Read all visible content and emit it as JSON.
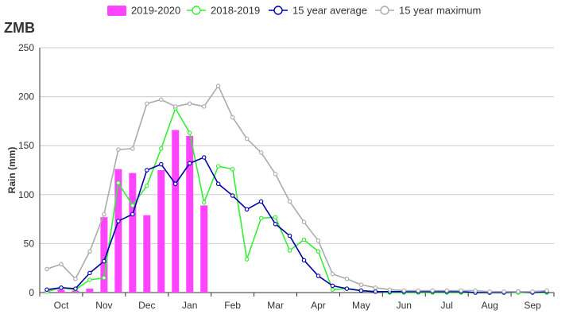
{
  "chart_data": {
    "type": "bar",
    "title": "ZMB",
    "ylabel": "Rain (mm)",
    "xlabel": "",
    "ylim": [
      0,
      250
    ],
    "yticks": [
      0,
      50,
      100,
      150,
      200,
      250
    ],
    "grid": true,
    "legend_position": "top",
    "months": [
      "Oct",
      "Nov",
      "Dec",
      "Jan",
      "Feb",
      "Mar",
      "Apr",
      "May",
      "Jun",
      "Jul",
      "Aug",
      "Sep"
    ],
    "dekads_per_month": 3,
    "series": [
      {
        "name": "2019-2020",
        "kind": "bar",
        "color": "#ff44ff",
        "values": [
          1,
          3,
          2,
          4,
          77,
          126,
          122,
          79,
          125,
          166,
          160,
          89
        ]
      },
      {
        "name": "2018-2019",
        "kind": "line",
        "color": "#33ee33",
        "values": [
          1,
          5,
          3,
          13,
          15,
          112,
          89,
          109,
          147,
          188,
          163,
          92,
          129,
          126,
          34,
          76,
          77,
          43,
          54,
          42,
          3,
          4,
          2,
          1,
          0,
          0,
          0,
          0,
          0,
          0,
          0,
          0,
          0,
          0,
          0,
          0
        ]
      },
      {
        "name": "15 year average",
        "kind": "line",
        "color": "#0000aa",
        "values": [
          3,
          5,
          4,
          20,
          32,
          73,
          80,
          125,
          131,
          111,
          132,
          138,
          111,
          99,
          85,
          93,
          70,
          58,
          33,
          17,
          7,
          4,
          2,
          1,
          1,
          1,
          1,
          1,
          1,
          1,
          0,
          0,
          0,
          1,
          0,
          1
        ]
      },
      {
        "name": "15 year maximum",
        "kind": "line",
        "color": "#aaaaaa",
        "values": [
          24,
          29,
          14,
          42,
          80,
          146,
          147,
          193,
          197,
          190,
          193,
          190,
          211,
          179,
          157,
          143,
          121,
          93,
          72,
          53,
          19,
          14,
          8,
          5,
          3,
          2,
          2,
          2,
          2,
          2,
          2,
          1,
          1,
          1,
          1,
          2
        ]
      }
    ]
  }
}
